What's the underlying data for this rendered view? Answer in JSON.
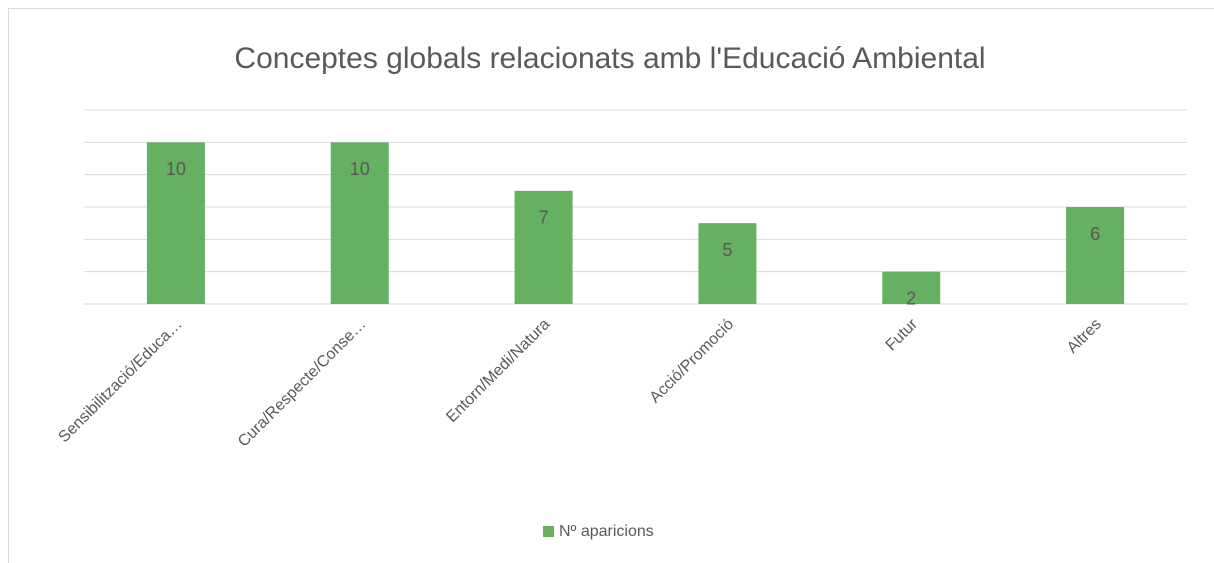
{
  "chart_data": {
    "type": "bar",
    "title": "Conceptes globals relacionats amb l'Educació Ambiental",
    "categories": [
      "Sensibilització/Educa…",
      "Cura/Respecte/Conse…",
      "Entorn/Medi/Natura",
      "Acció/Promoció",
      "Futur",
      "Altres"
    ],
    "series": [
      {
        "name": "Nº aparicions",
        "color": "#66b062",
        "values": [
          10,
          10,
          7,
          5,
          2,
          6
        ]
      }
    ],
    "ylim": [
      0,
      12
    ],
    "yticks": [
      0,
      2,
      4,
      6,
      8,
      10,
      12
    ],
    "grid": true,
    "legend": "bottom"
  }
}
